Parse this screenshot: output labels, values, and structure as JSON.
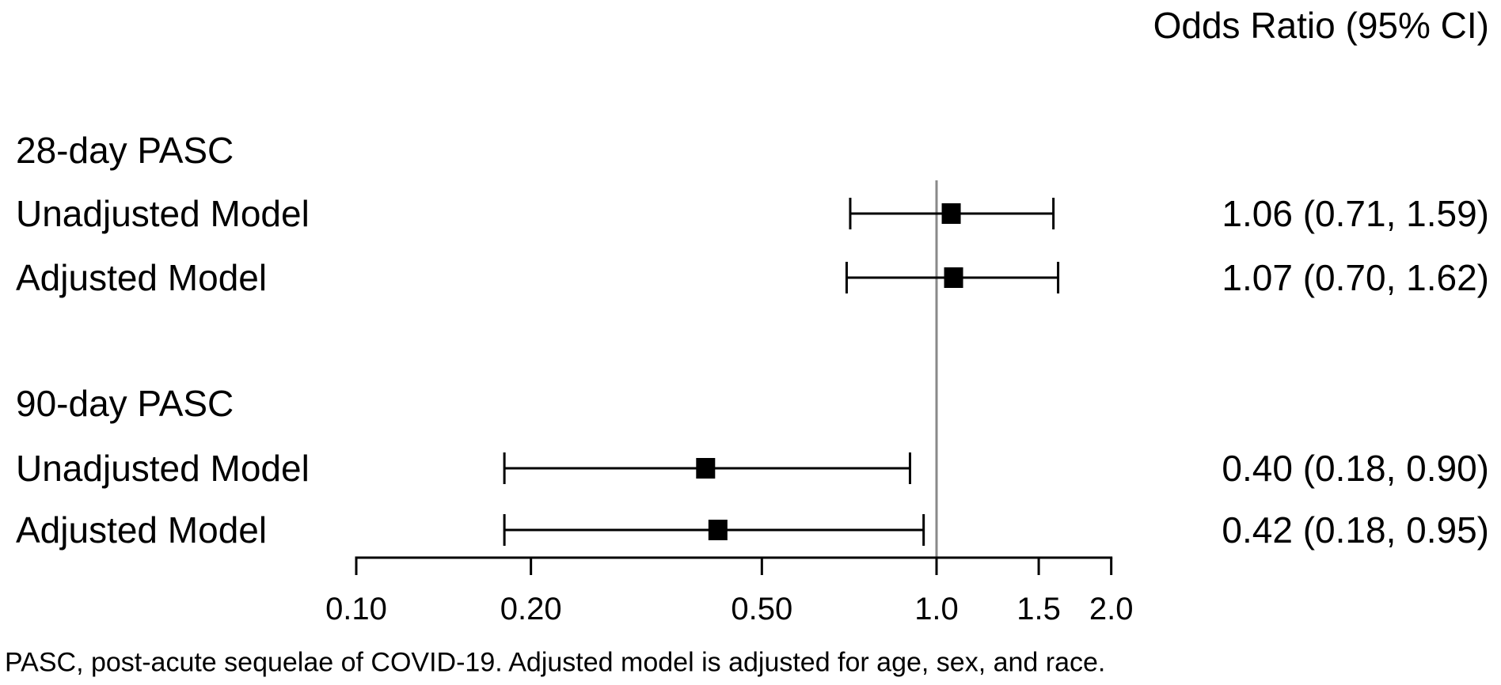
{
  "header": {
    "title": "Odds Ratio (95% CI)"
  },
  "footnote": "PASC, post-acute sequelae of COVID-19. Adjusted model is adjusted for age, sex, and race.",
  "colors": {
    "text": "#000000",
    "marker": "#000000",
    "error_bar": "#000000",
    "axis": "#000000",
    "reference_line": "#8a8a8a",
    "background": "#ffffff"
  },
  "chart_data": {
    "type": "forest",
    "x_scale": "log10",
    "x_range": [
      0.1,
      2.0
    ],
    "x_ticks": [
      0.1,
      0.2,
      0.5,
      1.0,
      1.5,
      2.0
    ],
    "x_tick_labels": [
      "0.10",
      "0.20",
      "0.50",
      "1.0",
      "1.5",
      "2.0"
    ],
    "reference_value": 1.0,
    "value_column_header": "Odds Ratio (95% CI)",
    "grid": false,
    "legend": false,
    "groups": [
      {
        "label": "28-day PASC",
        "rows": [
          {
            "label": "Unadjusted Model",
            "or": 1.06,
            "ci_low": 0.71,
            "ci_high": 1.59,
            "display": "1.06 (0.71, 1.59)"
          },
          {
            "label": "Adjusted Model",
            "or": 1.07,
            "ci_low": 0.7,
            "ci_high": 1.62,
            "display": "1.07 (0.70, 1.62)"
          }
        ]
      },
      {
        "label": "90-day PASC",
        "rows": [
          {
            "label": "Unadjusted Model",
            "or": 0.4,
            "ci_low": 0.18,
            "ci_high": 0.9,
            "display": "0.40 (0.18, 0.90)"
          },
          {
            "label": "Adjusted Model",
            "or": 0.42,
            "ci_low": 0.18,
            "ci_high": 0.95,
            "display": "0.42 (0.18, 0.95)"
          }
        ]
      }
    ]
  }
}
